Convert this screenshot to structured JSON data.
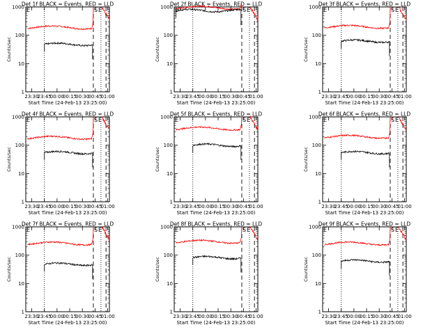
{
  "chart_data": {
    "type": "line",
    "y_scale": "log",
    "ylim": [
      1,
      1000
    ],
    "y_ticks": [
      "1",
      "10",
      "100",
      "1000"
    ],
    "x_ticks": [
      "23:30",
      "23:45",
      "00:00",
      "00:15",
      "00:30",
      "00:45",
      "01:00"
    ],
    "xlim_minutes": [
      -2,
      97
    ],
    "xlabel": "Start Time (24-Feb-13 23:25:00)",
    "ylabel": "Counts/sec",
    "markers": {
      "E": "E",
      "S": "S",
      "E2": "E"
    },
    "vertical_lines": {
      "dotted": [
        20,
        87
      ],
      "dashed": [
        78,
        93
      ]
    },
    "panels": [
      {
        "title": "Det 1f BLACK = Events, RED = LLD",
        "events": 48,
        "lld": 190,
        "event_start": 20
      },
      {
        "title": "Det 2f BLACK = Events, RED = LLD",
        "events": 750,
        "lld": 950,
        "event_start": 0
      },
      {
        "title": "Det 3f BLACK = Events, RED = LLD",
        "events": 62,
        "lld": 200,
        "event_start": 20
      },
      {
        "title": "Det 4f BLACK = Events, RED = LLD",
        "events": 55,
        "lld": 185,
        "event_start": 20
      },
      {
        "title": "Det 5f BLACK = Events, RED = LLD",
        "events": 100,
        "lld": 390,
        "event_start": 20
      },
      {
        "title": "Det 6f BLACK = Events, RED = LLD",
        "events": 55,
        "lld": 200,
        "event_start": 20
      },
      {
        "title": "Det 7f BLACK = Events, RED = LLD",
        "events": 48,
        "lld": 260,
        "event_start": 20
      },
      {
        "title": "Det 8f BLACK = Events, RED = LLD",
        "events": 82,
        "lld": 300,
        "event_start": 20
      },
      {
        "title": "Det 9f BLACK = Events, RED = LLD",
        "events": 62,
        "lld": 260,
        "event_start": 20
      }
    ],
    "colors": {
      "events": "#000000",
      "lld": "#ff0000",
      "axes": "#000000"
    }
  }
}
